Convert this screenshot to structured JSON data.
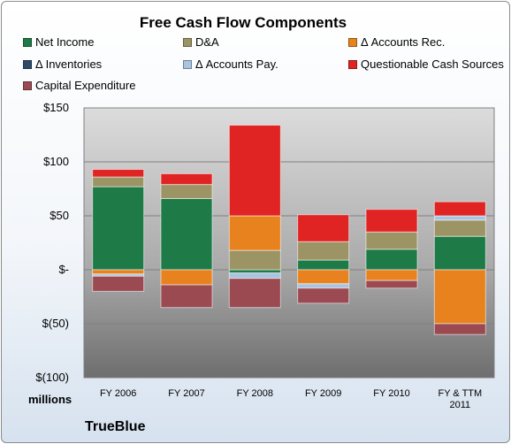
{
  "chart_data": {
    "type": "bar",
    "stacked": true,
    "title": "Free Cash Flow Components",
    "units_label": "millions",
    "brand": "TrueBlue",
    "categories": [
      "FY 2006",
      "FY 2007",
      "FY 2008",
      "FY 2009",
      "FY 2010",
      "FY & TTM 2011"
    ],
    "ylim": [
      -100,
      150
    ],
    "yticks": [
      150,
      100,
      50,
      0,
      -50,
      -100
    ],
    "ytick_labels": [
      "$150",
      "$100",
      "$50",
      "$-",
      "$(50)",
      "$(100)"
    ],
    "grid": true,
    "legend_position": "top",
    "series": [
      {
        "name": "Net Income",
        "color": "#1e7a46",
        "values": [
          77,
          66,
          -3,
          9,
          19,
          31
        ]
      },
      {
        "name": "D&A",
        "color": "#9c9464",
        "values": [
          9,
          13,
          18,
          17,
          16,
          15
        ]
      },
      {
        "name": "Δ Accounts Rec.",
        "color": "#e8821e",
        "values": [
          -4,
          -14,
          32,
          -13,
          -10,
          -50
        ]
      },
      {
        "name": "Δ Inventories",
        "color": "#2e4a6b",
        "values": [
          0,
          0,
          0,
          0,
          0,
          0
        ]
      },
      {
        "name": "Δ Accounts Pay.",
        "color": "#a8c4e0",
        "values": [
          -2,
          0,
          -5,
          -4,
          0,
          4
        ]
      },
      {
        "name": "Questionable Cash Sources",
        "color": "#e02424",
        "values": [
          7,
          10,
          84,
          25,
          21,
          13
        ]
      },
      {
        "name": "Capital Expenditure",
        "color": "#9b4a52",
        "values": [
          -14,
          -21,
          -27,
          -14,
          -7,
          -10
        ]
      }
    ]
  }
}
